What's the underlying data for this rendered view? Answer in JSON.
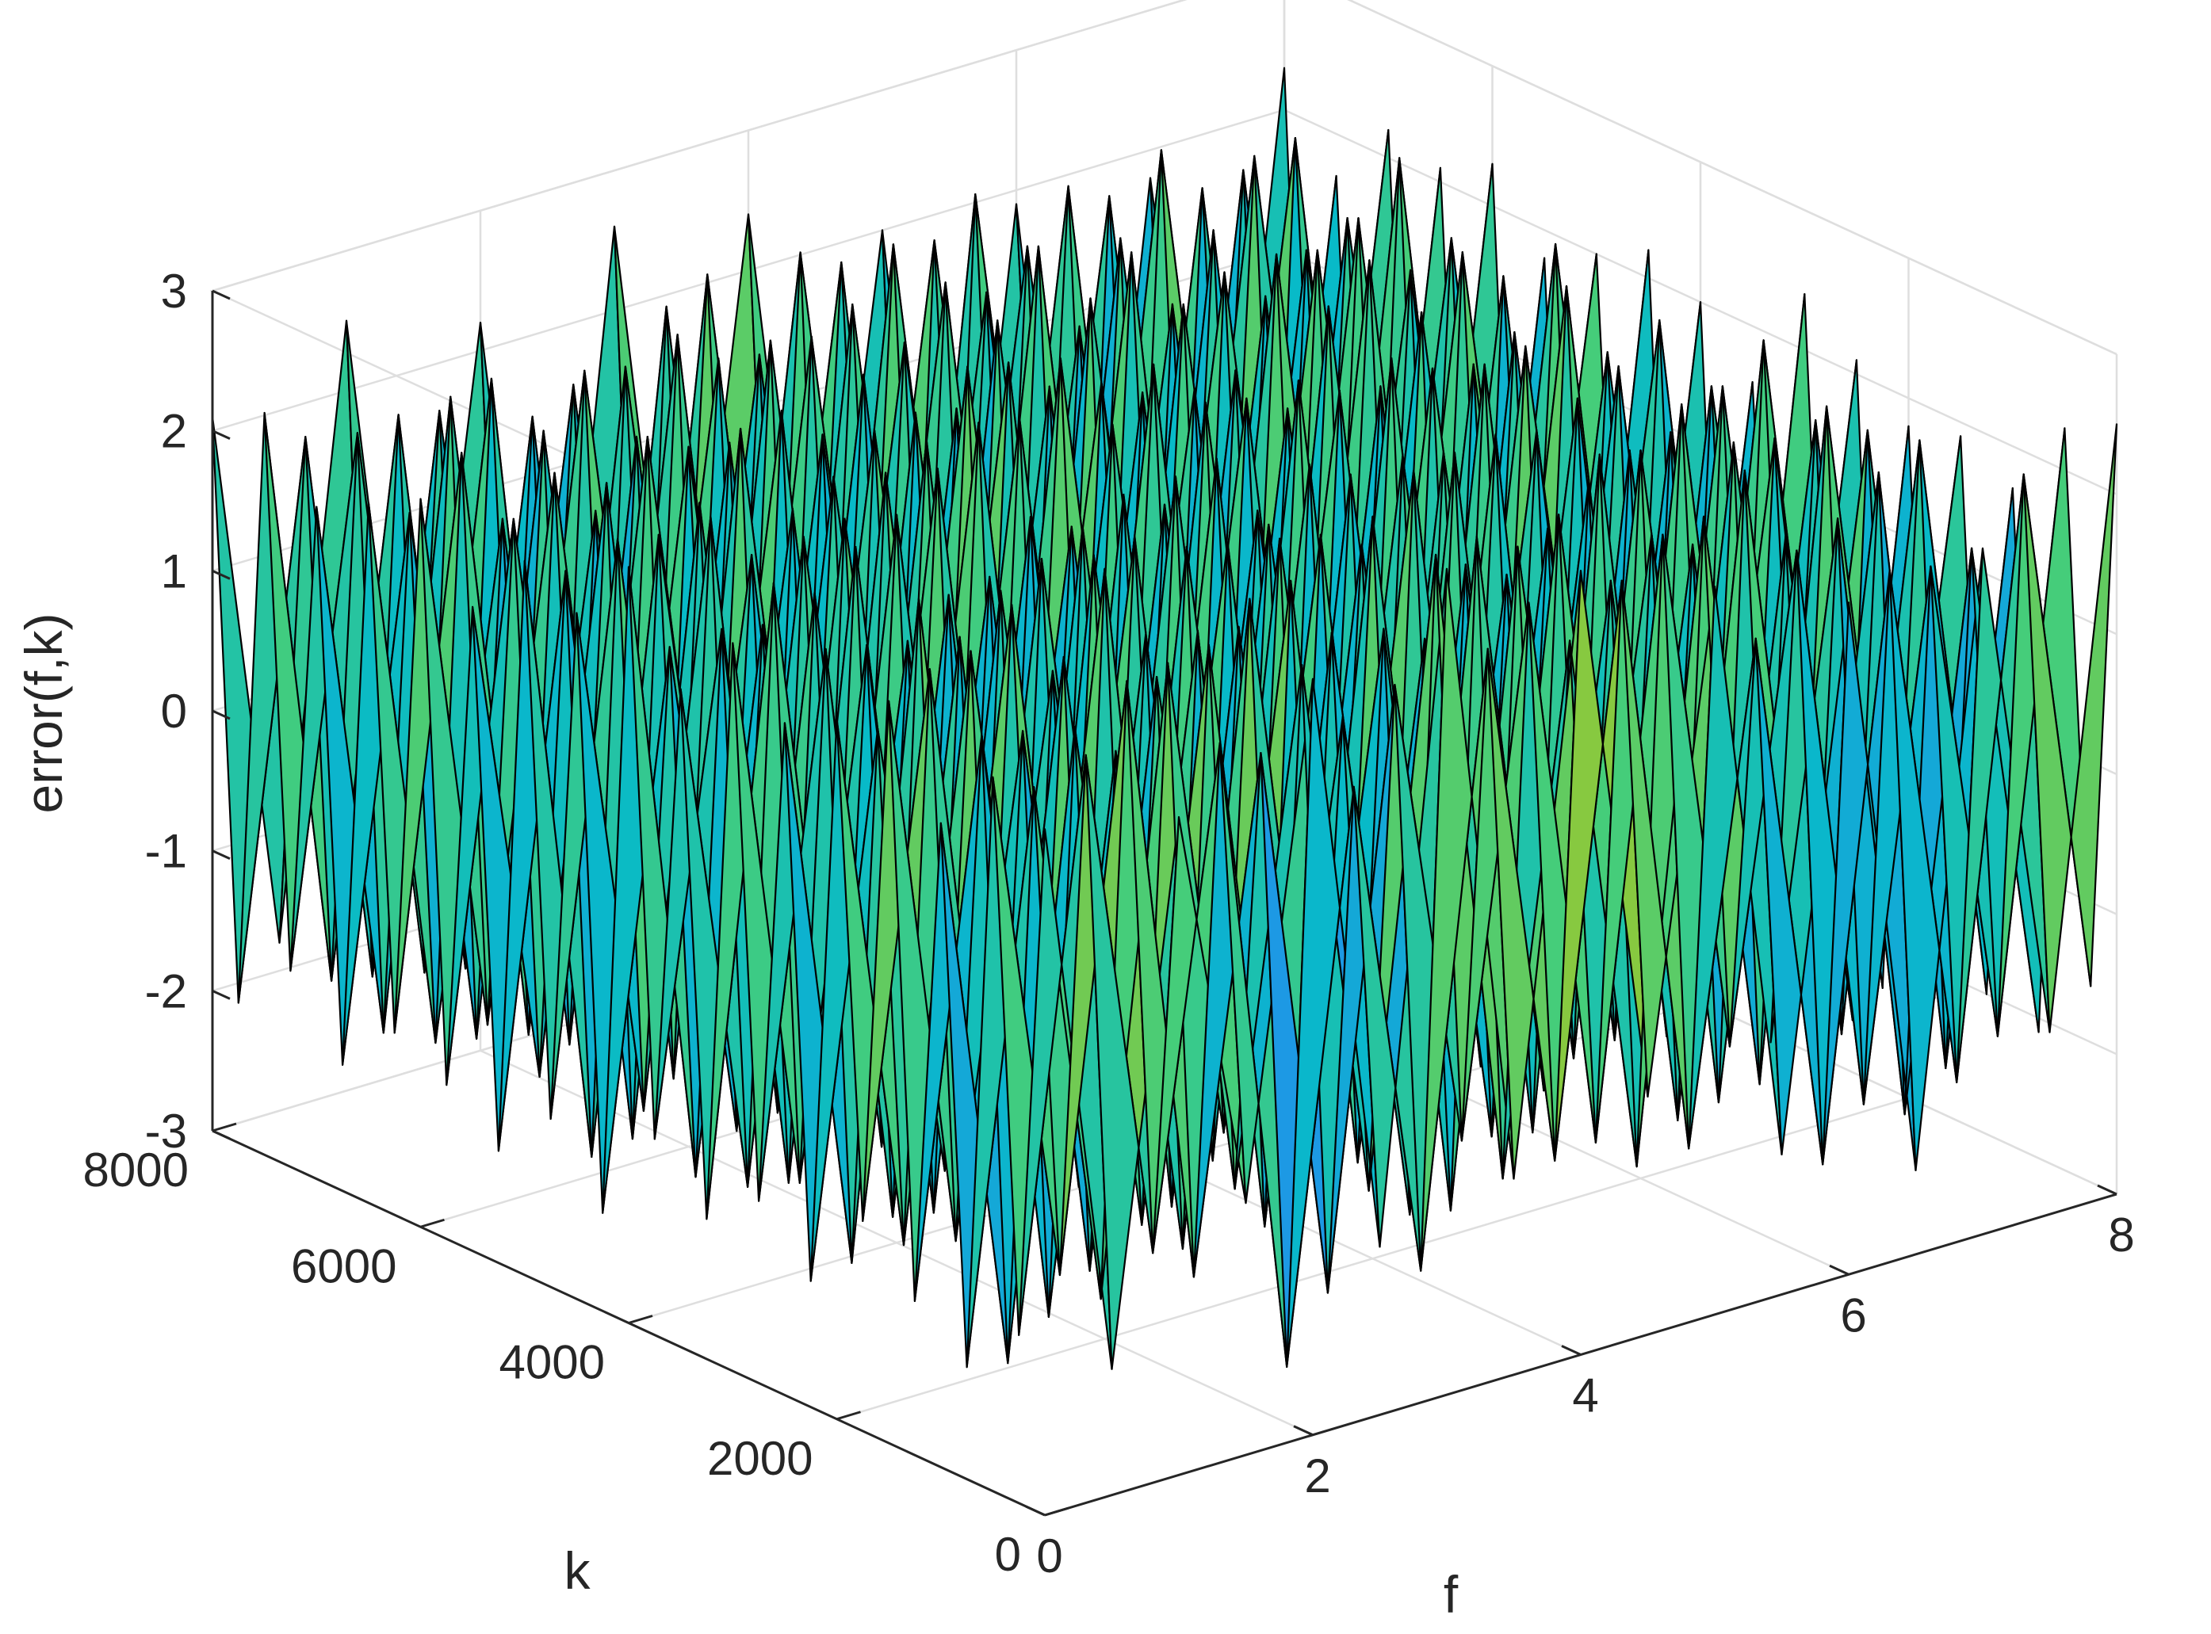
{
  "chart_data": {
    "type": "surface3d",
    "xlabel": "f",
    "ylabel": "k",
    "zlabel": "error(f,k)",
    "xlim": [
      0,
      8
    ],
    "ylim": [
      0,
      8000
    ],
    "zlim": [
      -3,
      3
    ],
    "x_ticks": [
      "0",
      "2",
      "4",
      "6",
      "8"
    ],
    "y_ticks": [
      "0",
      "2000",
      "4000",
      "6000",
      "8000"
    ],
    "z_ticks": [
      "-3",
      "-2",
      "-1",
      "0",
      "1",
      "2",
      "3"
    ],
    "grid": true,
    "colormap": "parula",
    "f_values": [
      0,
      0.5,
      1,
      1.5,
      2,
      2.5,
      3,
      3.5,
      4,
      4.5,
      5,
      5.5,
      6,
      6.5,
      7,
      7.5,
      8
    ],
    "k_values": [
      0,
      250,
      500,
      750,
      1000,
      1250,
      1500,
      1750,
      2000,
      2250,
      2500,
      2750,
      3000,
      3250,
      3500,
      3750,
      4000,
      4250,
      4500,
      4750,
      5000,
      5250,
      5500,
      5750,
      6000,
      6250,
      6500,
      6750,
      7000,
      7250,
      7500,
      7750,
      8000
    ],
    "error": [
      [
        1.9,
        -2.1,
        1.7,
        -1.2,
        2.4,
        -1.8,
        2.9,
        -1.6,
        2.6,
        -1.3,
        2.2,
        -2.0,
        1.8,
        -2.4,
        1.9,
        -1.7,
        2.5
      ],
      [
        -1.8,
        2.2,
        -1.5,
        2.0,
        -2.6,
        1.4,
        -2.2,
        2.1,
        -1.7,
        2.3,
        -1.9,
        1.6,
        -2.3,
        1.8,
        -2.0,
        2.2,
        -1.6
      ],
      [
        2.1,
        -1.6,
        2.5,
        -1.9,
        1.7,
        -2.3,
        1.9,
        -1.5,
        2.2,
        -1.8,
        2.4,
        -1.4,
        2.0,
        -2.1,
        1.6,
        -1.9,
        2.3
      ],
      [
        -2.2,
        1.8,
        -2.0,
        2.4,
        -1.5,
        2.1,
        -1.8,
        2.6,
        -2.0,
        1.7,
        -2.2,
        2.3,
        -1.6,
        2.0,
        -2.4,
        1.5,
        -2.1
      ],
      [
        1.6,
        -2.4,
        2.0,
        -1.7,
        2.3,
        -1.9,
        1.5,
        -2.2,
        2.5,
        -1.6,
        1.9,
        -2.1,
        2.4,
        -1.8,
        2.1,
        -2.3,
        1.7
      ],
      [
        -1.9,
        2.0,
        -2.3,
        1.6,
        -2.1,
        2.4,
        -1.7,
        1.9,
        -2.4,
        2.2,
        -1.5,
        2.0,
        -2.2,
        1.7,
        -1.9,
        2.1,
        -2.0
      ],
      [
        2.3,
        -1.7,
        1.8,
        -2.2,
        1.9,
        -1.5,
        2.3,
        -2.0,
        1.6,
        -2.1,
        2.2,
        -1.8,
        1.7,
        -2.3,
        2.4,
        -1.6,
        1.9
      ],
      [
        -1.5,
        2.3,
        -1.9,
        2.1,
        -1.8,
        2.0,
        -2.4,
        1.7,
        -2.0,
        1.9,
        -2.3,
        2.4,
        -1.9,
        2.2,
        -1.7,
        2.0,
        -2.2
      ],
      [
        2.0,
        -1.9,
        2.2,
        -1.6,
        2.5,
        -2.2,
        1.8,
        -2.1,
        2.3,
        -1.9,
        1.6,
        -2.0,
        2.2,
        -1.6,
        2.0,
        -2.4,
        1.8
      ],
      [
        -2.1,
        1.7,
        -1.6,
        2.3,
        -2.0,
        1.8,
        -2.1,
        2.2,
        -1.6,
        2.4,
        -2.0,
        1.7,
        -2.1,
        2.3,
        -1.8,
        1.9,
        -2.3
      ],
      [
        1.8,
        -2.2,
        2.4,
        -1.8,
        1.6,
        -2.0,
        2.2,
        -1.7,
        2.0,
        -2.2,
        2.3,
        -1.9,
        1.8,
        -2.0,
        2.2,
        -1.7,
        2.1
      ],
      [
        -1.7,
        2.1,
        -2.1,
        1.9,
        -2.3,
        2.2,
        -1.6,
        2.0,
        -2.2,
        1.7,
        -1.9,
        2.2,
        -2.4,
        1.8,
        -2.1,
        2.3,
        -1.8
      ],
      [
        2.2,
        -1.8,
        1.9,
        -2.3,
        2.0,
        -1.7,
        2.1,
        -2.2,
        1.9,
        -1.8,
        2.1,
        -1.6,
        2.0,
        -2.2,
        1.7,
        -2.0,
        2.4
      ],
      [
        -2.0,
        2.4,
        -1.8,
        1.7,
        -2.2,
        2.0,
        -1.9,
        2.3,
        -1.8,
        2.1,
        -2.2,
        1.9,
        -1.7,
        2.0,
        -2.3,
        1.8,
        -1.9
      ],
      [
        1.7,
        -2.0,
        2.1,
        -2.0,
        1.8,
        -2.4,
        2.0,
        -1.8,
        2.2,
        -2.3,
        1.8,
        -2.1,
        2.3,
        -1.9,
        2.0,
        -2.2,
        1.6
      ],
      [
        -1.6,
        1.9,
        -2.2,
        2.2,
        -1.9,
        1.7,
        -2.3,
        2.0,
        -2.1,
        1.6,
        -2.0,
        2.4,
        -1.9,
        2.2,
        -1.6,
        2.1,
        -2.2
      ],
      [
        2.4,
        -2.1,
        1.7,
        -1.9,
        2.2,
        -2.0,
        1.9,
        -2.3,
        1.7,
        -2.0,
        2.3,
        -1.8,
        2.1,
        -1.7,
        2.4,
        -1.9,
        2.0
      ],
      [
        -2.3,
        1.6,
        -2.0,
        2.1,
        -1.7,
        2.3,
        -2.0,
        1.6,
        -2.2,
        2.2,
        -1.7,
        2.0,
        -2.2,
        1.9,
        -2.0,
        1.7,
        -2.1
      ],
      [
        1.9,
        -1.8,
        2.3,
        -2.1,
        2.0,
        -1.6,
        2.4,
        -1.9,
        2.1,
        -1.7,
        2.0,
        -2.2,
        1.8,
        -2.4,
        1.9,
        -2.1,
        2.2
      ],
      [
        -1.8,
        2.2,
        -1.7,
        1.8,
        -2.4,
        2.1,
        -1.8,
        2.2,
        -1.9,
        2.3,
        -2.1,
        1.7,
        -2.0,
        2.1,
        -1.8,
        2.3,
        -1.7
      ],
      [
        2.1,
        -2.3,
        2.0,
        -1.7,
        1.9,
        -2.2,
        2.1,
        -2.0,
        2.4,
        -1.6,
        1.9,
        -2.3,
        2.2,
        -1.8,
        2.3,
        -1.6,
        2.0
      ],
      [
        -2.2,
        1.8,
        -2.4,
        2.0,
        -2.1,
        1.9,
        -1.7,
        2.4,
        -1.6,
        2.0,
        -2.2,
        1.8,
        -1.9,
        2.3,
        -2.1,
        1.9,
        -2.3
      ],
      [
        1.6,
        -1.9,
        2.2,
        -2.2,
        2.3,
        -1.8,
        2.0,
        -1.7,
        2.2,
        -2.1,
        1.7,
        -2.0,
        2.4,
        -1.7,
        2.0,
        -2.2,
        1.8
      ],
      [
        -1.9,
        2.0,
        -1.8,
        2.3,
        -1.6,
        2.2,
        -2.3,
        1.9,
        -2.0,
        1.8,
        -2.3,
        2.1,
        -1.8,
        2.2,
        -1.7,
        2.0,
        -2.0
      ],
      [
        2.2,
        -1.7,
        2.1,
        -1.9,
        2.0,
        -2.1,
        1.8,
        -2.2,
        1.7,
        -2.4,
        2.2,
        -1.6,
        2.1,
        -1.9,
        2.2,
        -1.8,
        2.3
      ],
      [
        -1.7,
        2.3,
        -2.0,
        1.6,
        -2.2,
        1.8,
        -2.1,
        2.0,
        -2.3,
        2.1,
        -1.8,
        2.3,
        -2.2,
        1.7,
        -2.0,
        2.4,
        -1.9
      ],
      [
        2.0,
        -2.0,
        1.6,
        -2.3,
        1.9,
        -2.2,
        2.3,
        -1.7,
        2.0,
        -1.9,
        2.4,
        -1.9,
        1.7,
        -2.1,
        1.8,
        -2.0,
        2.1
      ],
      [
        -2.1,
        1.7,
        -2.2,
        2.0,
        -1.8,
        2.4,
        -1.9,
        2.1,
        -1.7,
        2.2,
        -2.0,
        1.6,
        -2.3,
        2.0,
        -2.2,
        1.8,
        -1.8
      ],
      [
        1.8,
        -2.1,
        2.3,
        -1.8,
        2.2,
        -1.7,
        2.0,
        -2.3,
        2.1,
        -1.8,
        1.9,
        -2.2,
        2.0,
        -1.8,
        2.3,
        -1.7,
        2.2
      ],
      [
        -1.6,
        2.1,
        -1.9,
        2.2,
        -2.3,
        2.0,
        -1.8,
        1.8,
        -2.2,
        2.3,
        -1.7,
        2.0,
        -1.9,
        2.4,
        -1.6,
        2.2,
        -2.1
      ],
      [
        2.3,
        -1.9,
        2.0,
        -2.1,
        1.7,
        -2.3,
        2.2,
        -1.9,
        2.3,
        -1.6,
        2.1,
        -1.8,
        2.2,
        -2.0,
        1.9,
        -2.3,
        1.7
      ],
      [
        -2.0,
        1.9,
        -2.1,
        1.8,
        -2.0,
        1.7,
        -2.2,
        2.2,
        -1.8,
        2.0,
        -2.4,
        2.2,
        -1.7,
        1.9,
        -2.2,
        1.8,
        -2.2
      ],
      [
        2.1,
        -1.8,
        2.5,
        -1.6,
        2.2,
        -1.9,
        2.6,
        -1.5,
        2.4,
        -1.7,
        2.0,
        -2.2,
        1.9,
        -2.4,
        1.8,
        -2.0,
        2.3
      ]
    ]
  }
}
